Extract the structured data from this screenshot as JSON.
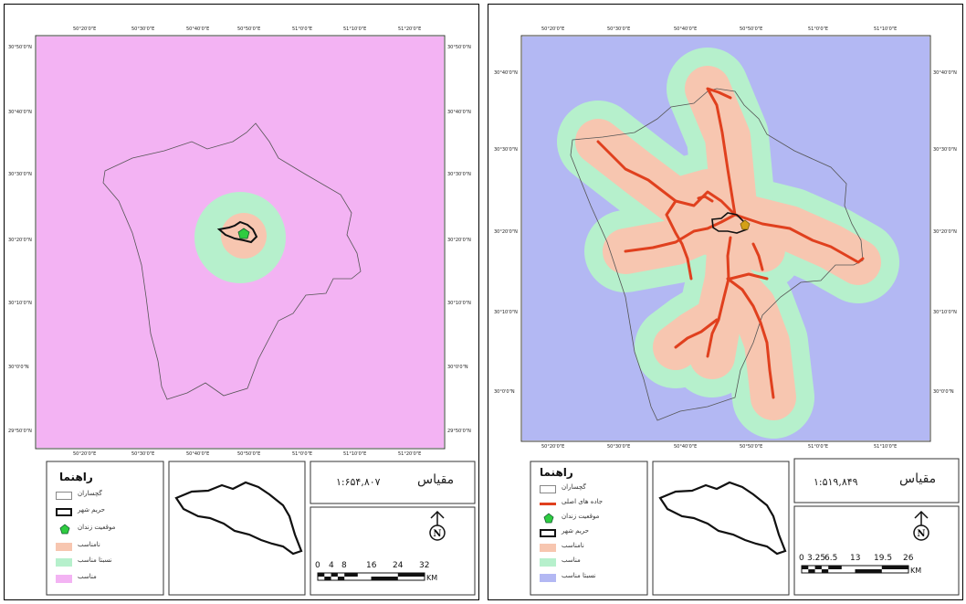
{
  "panels": [
    {
      "id": "left",
      "colors": {
        "background_class": "#f3b3f3",
        "ring_class": "#b6f0cc",
        "core_class": "#f7c6b0",
        "boundary": "#555555"
      },
      "top_ticks": [
        "50°20'0\"E",
        "50°30'0\"E",
        "50°40'0\"E",
        "50°50'0\"E",
        "51°0'0\"E",
        "51°10'0\"E",
        "51°20'0\"E"
      ],
      "bottom_ticks": [
        "50°20'0\"E",
        "50°30'0\"E",
        "50°40'0\"E",
        "50°50'0\"E",
        "51°0'0\"E",
        "51°10'0\"E",
        "51°20'0\"E"
      ],
      "left_ticks": [
        "30°50'0\"N",
        "30°40'0\"N",
        "30°30'0\"N",
        "30°20'0\"N",
        "30°10'0\"N",
        "30°0'0\"N",
        "29°50'0\"N"
      ],
      "right_ticks": [
        "30°50'0\"N",
        "30°40'0\"N",
        "30°30'0\"N",
        "30°20'0\"N",
        "30°10'0\"N",
        "30°0'0\"N",
        "29°50'0\"N"
      ],
      "legend": {
        "title": "راهنما",
        "items": [
          {
            "label": "گچساران",
            "swatch": "#ffffff",
            "kind": "box"
          },
          {
            "label": "حریم شهر",
            "swatch": "#ffffff",
            "kind": "thickbox"
          },
          {
            "label": "موقعیت زندان",
            "swatch": "#2ecc40",
            "kind": "pentagon"
          },
          {
            "label": "نامناسب",
            "swatch": "#f7c6b0",
            "kind": "box"
          },
          {
            "label": "نسبتا مناسب",
            "swatch": "#b6f0cc",
            "kind": "box"
          },
          {
            "label": "مناسب",
            "swatch": "#f3b3f3",
            "kind": "box"
          }
        ]
      },
      "scale": {
        "title": "مقیاس",
        "ratio": "۱:۶۵۴,۸۰۷",
        "bar_labels": [
          "0",
          "4",
          "8",
          "16",
          "24",
          "32"
        ],
        "unit": "KM"
      }
    },
    {
      "id": "right",
      "colors": {
        "background_class": "#b3b8f3",
        "ring_class": "#b6f0cc",
        "core_class": "#f7c6b0",
        "roads": "#e0401e",
        "boundary": "#555555"
      },
      "top_ticks": [
        "50°20'0\"E",
        "50°30'0\"E",
        "50°40'0\"E",
        "50°50'0\"E",
        "51°0'0\"E",
        "51°10'0\"E"
      ],
      "bottom_ticks": [
        "50°20'0\"E",
        "50°30'0\"E",
        "50°40'0\"E",
        "50°50'0\"E",
        "51°0'0\"E",
        "51°10'0\"E"
      ],
      "left_ticks": [
        "30°40'0\"N",
        "30°30'0\"N",
        "30°20'0\"N",
        "30°10'0\"N",
        "30°0'0\"N"
      ],
      "right_ticks": [
        "30°40'0\"N",
        "30°30'0\"N",
        "30°20'0\"N",
        "30°10'0\"N",
        "30°0'0\"N"
      ],
      "legend": {
        "title": "راهنما",
        "items": [
          {
            "label": "گچساران",
            "swatch": "#ffffff",
            "kind": "box"
          },
          {
            "label": "جاده های اصلی",
            "swatch": "#e0401e",
            "kind": "line"
          },
          {
            "label": "موقعیت زندان",
            "swatch": "#2ecc40",
            "kind": "pentagon"
          },
          {
            "label": "حریم شهر",
            "swatch": "#ffffff",
            "kind": "thickbox"
          },
          {
            "label": "نامناسب",
            "swatch": "#f7c6b0",
            "kind": "box"
          },
          {
            "label": "مناسب",
            "swatch": "#b6f0cc",
            "kind": "box"
          },
          {
            "label": "نسبتا مناسب",
            "swatch": "#b3b8f3",
            "kind": "box"
          }
        ]
      },
      "scale": {
        "title": "مقیاس",
        "ratio": "۱:۵۱۹,۸۴۹",
        "bar_labels": [
          "0",
          "3.25",
          "6.5",
          "13",
          "19.5",
          "26"
        ],
        "unit": "KM"
      }
    }
  ]
}
